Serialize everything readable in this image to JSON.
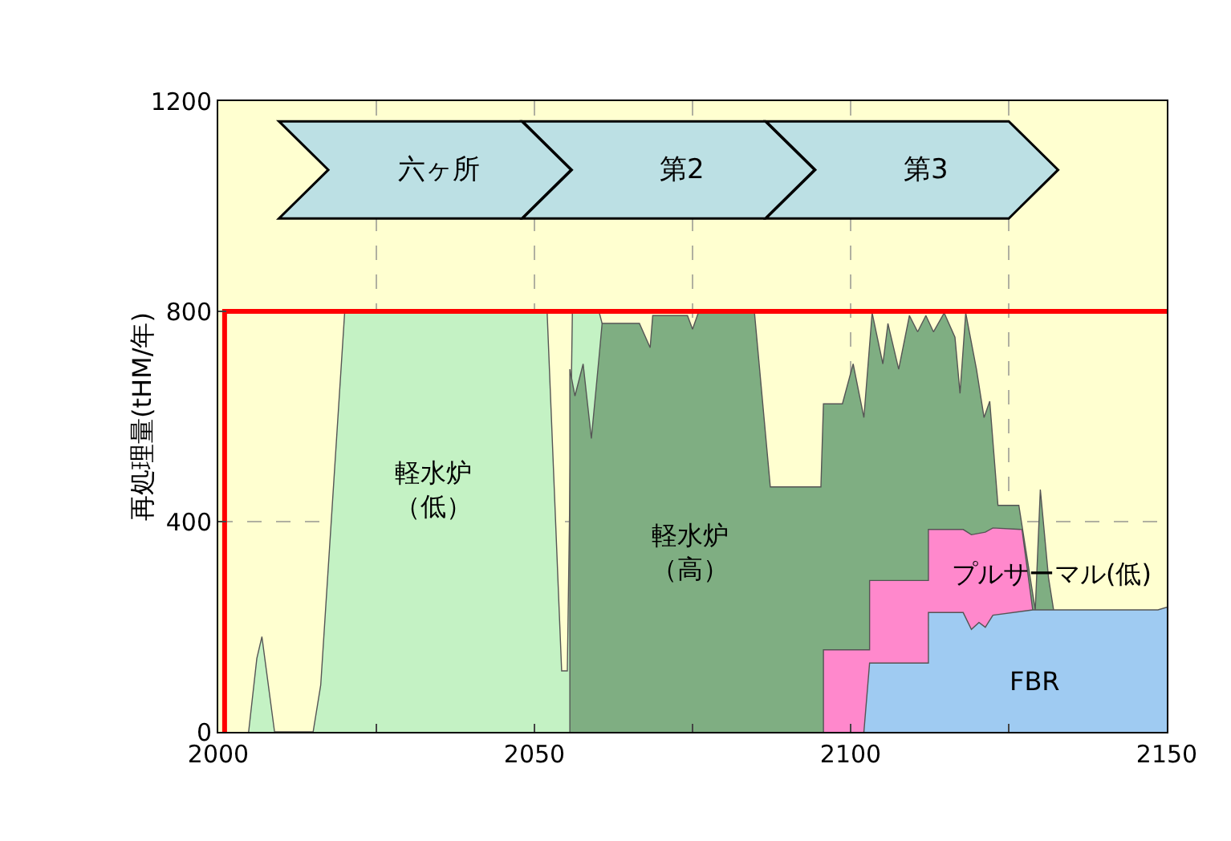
{
  "chart_data": {
    "type": "area",
    "ylabel": "再処理量(tHM/年)",
    "xlim": [
      2000,
      2150
    ],
    "xticks": [
      2000,
      {
        "value": 2025,
        "label": null
      },
      2050,
      {
        "value": 2075,
        "label": null
      },
      2100,
      {
        "value": 2125,
        "label": null
      },
      2150
    ],
    "ylim": [
      0,
      1200
    ],
    "yticks": [
      0,
      400,
      800,
      1200
    ],
    "grid": true,
    "annotations": [
      "六ヶ所",
      "第2",
      "第3",
      "軽水炉（低）",
      "軽水炉（高）",
      "プルサーマル(低)",
      "FBR"
    ],
    "series": [
      {
        "color": "#c4f2c4",
        "x": [
          2004.8,
          2006.1,
          2006.9,
          2008.9,
          2015,
          2016.2,
          2020,
          2052,
          2054.3,
          2055.2,
          2056,
          2060.2,
          2060.7
        ],
        "values": [
          0,
          140,
          181,
          0,
          0,
          89,
          800,
          800,
          116,
          116,
          800,
          800,
          777
        ]
      },
      {
        "color": "#7fae82",
        "x": [
          2055.6,
          2055.6,
          2056.4,
          2057.7,
          2059,
          2060.2,
          2060.7,
          2066.6,
          2068.3,
          2068.7,
          2074.2,
          2075,
          2075.9,
          2084.8,
          2087.3,
          2095.3,
          2095.7,
          2098.7,
          2100.4,
          2102.1,
          2103.4,
          2105.1,
          2105.9,
          2107.6,
          2109.3,
          2110.6,
          2111.9,
          2113.1,
          2114.8,
          2116.5,
          2117.3,
          2118.2,
          2119.9,
          2121.1,
          2122,
          2123.3,
          2126.6,
          2129.2,
          2130,
          2131.3,
          2132.1
        ],
        "values": [
          0,
          690,
          639,
          700,
          558,
          711,
          777,
          777,
          731,
          792,
          792,
          766,
          797,
          797,
          466,
          466,
          624,
          624,
          700,
          598,
          797,
          700,
          777,
          690,
          792,
          761,
          792,
          761,
          797,
          751,
          644,
          797,
          690,
          598,
          629,
          431,
          431,
          232,
          461,
          293,
          232
        ]
      },
      {
        "color": "#ff88cc",
        "x": [
          2095.7,
          2095.7,
          2103,
          2103,
          2112.3,
          2112.3,
          2117.8,
          2119.1,
          2121.3,
          2122.5,
          2127.1,
          2128.8
        ],
        "values": [
          0,
          156,
          156,
          288,
          288,
          385,
          385,
          375,
          380,
          388,
          385,
          232
        ]
      },
      {
        "color": "#9fcbf2",
        "x": [
          2102.1,
          2103,
          2112.3,
          2112.3,
          2117.8,
          2119.1,
          2120.3,
          2121.3,
          2122.5,
          2128.8,
          2148.6,
          2150
        ],
        "values": [
          0,
          131,
          131,
          227,
          227,
          195,
          208,
          199,
          222,
          232,
          232,
          237
        ]
      },
      {
        "type": "line",
        "color": "#ff0000",
        "x": [
          2001,
          2001,
          2150
        ],
        "values": [
          0,
          800,
          800
        ]
      }
    ]
  }
}
